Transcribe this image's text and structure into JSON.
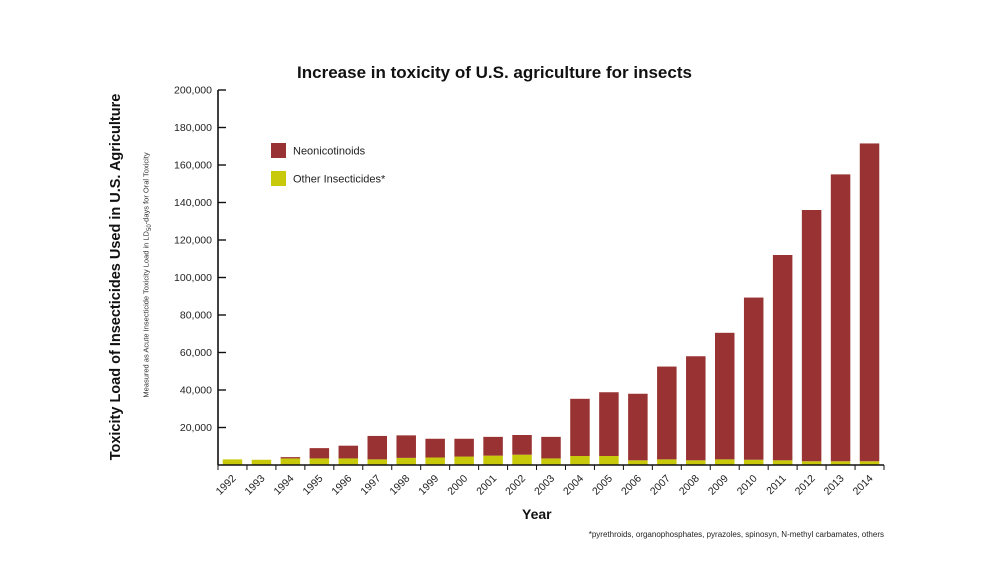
{
  "chart_data": {
    "type": "bar",
    "stacked": true,
    "title": "Increase in toxicity of U.S. agriculture for insects",
    "xlabel": "Year",
    "ylabel": "Toxicity Load of Insecticides Used in U.S. Agriculture",
    "ylabel_sub_pre": "Measured as Acute Insecticide Toxicity Load in LD",
    "ylabel_sub_subscript": "50",
    "ylabel_sub_post": "-days for Oral Toxicity",
    "footnote": "*pyrethroids, organophosphates, pyrazoles, spinosyn, N-methyl carbamates, others",
    "ylim": [
      0,
      200000
    ],
    "yticks": [
      20000,
      40000,
      60000,
      80000,
      100000,
      120000,
      140000,
      160000,
      180000,
      200000
    ],
    "ytick_labels": [
      "20,000",
      "40,000",
      "60,000",
      "80,000",
      "100,000",
      "120,000",
      "140,000",
      "160,000",
      "180,000",
      "200,000"
    ],
    "grid": false,
    "legend_position": "top-left",
    "categories": [
      "1992",
      "1993",
      "1994",
      "1995",
      "1996",
      "1997",
      "1998",
      "1999",
      "2000",
      "2001",
      "2002",
      "2003",
      "2004",
      "2005",
      "2006",
      "2007",
      "2008",
      "2009",
      "2010",
      "2011",
      "2012",
      "2013",
      "2014"
    ],
    "series": [
      {
        "name": "Other Insecticides*",
        "color": "#c9c90c",
        "values": [
          3000,
          2800,
          3500,
          3500,
          3500,
          3000,
          3800,
          4000,
          4500,
          5000,
          5500,
          3500,
          4800,
          4800,
          2500,
          3000,
          2500,
          3000,
          2800,
          2500,
          2000,
          2000,
          2000
        ]
      },
      {
        "name": "Neonicotinoids",
        "color": "#993333",
        "values": [
          0,
          0,
          700,
          5500,
          6800,
          12500,
          12000,
          10000,
          9500,
          10000,
          10500,
          11500,
          30500,
          34000,
          35500,
          49500,
          55500,
          67500,
          86500,
          109500,
          134000,
          153000,
          169500
        ]
      }
    ]
  }
}
